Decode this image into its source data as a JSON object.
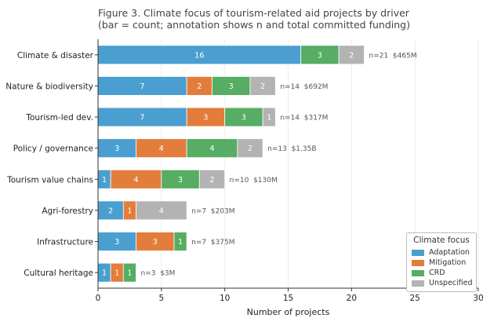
{
  "chart_data": {
    "type": "bar",
    "orientation": "horizontal",
    "stacked": true,
    "title": "Figure 3.  Climate focus of tourism-related aid projects by driver",
    "subtitle": "(bar = count; annotation shows n and total committed funding)",
    "xlabel": "Number of projects",
    "ylabel": "",
    "xlim": [
      0,
      30
    ],
    "xticks": [
      "0",
      "5",
      "10",
      "15",
      "20",
      "25",
      "30"
    ],
    "grid": "vertical",
    "categories": [
      "Climate & disaster",
      "Nature & biodiversity",
      "Tourism-led dev.",
      "Policy / governance",
      "Tourism value chains",
      "Agri-forestry",
      "Infrastructure",
      "Cultural heritage"
    ],
    "series": [
      {
        "name": "Adaptation",
        "color": "#4a9fd0",
        "values": [
          16,
          7,
          7,
          3,
          1,
          2,
          3,
          1
        ]
      },
      {
        "name": "Mitigation",
        "color": "#e37d3b",
        "values": [
          0,
          2,
          3,
          4,
          4,
          1,
          3,
          1
        ]
      },
      {
        "name": "CRD",
        "color": "#56ad63",
        "values": [
          3,
          3,
          3,
          4,
          3,
          0,
          1,
          1
        ]
      },
      {
        "name": "Unspecified",
        "color": "#b3b3b3",
        "values": [
          2,
          2,
          1,
          2,
          2,
          4,
          0,
          0
        ]
      }
    ],
    "annotations": [
      "n=21  $465M",
      "n=14  $692M",
      "n=14  $317M",
      "n=13  $1.35B",
      "n=10  $130M",
      "n=7  $203M",
      "n=7  $375M",
      "n=3  $3M"
    ],
    "legend": {
      "title": "Climate focus",
      "position": "bottom-right"
    }
  }
}
